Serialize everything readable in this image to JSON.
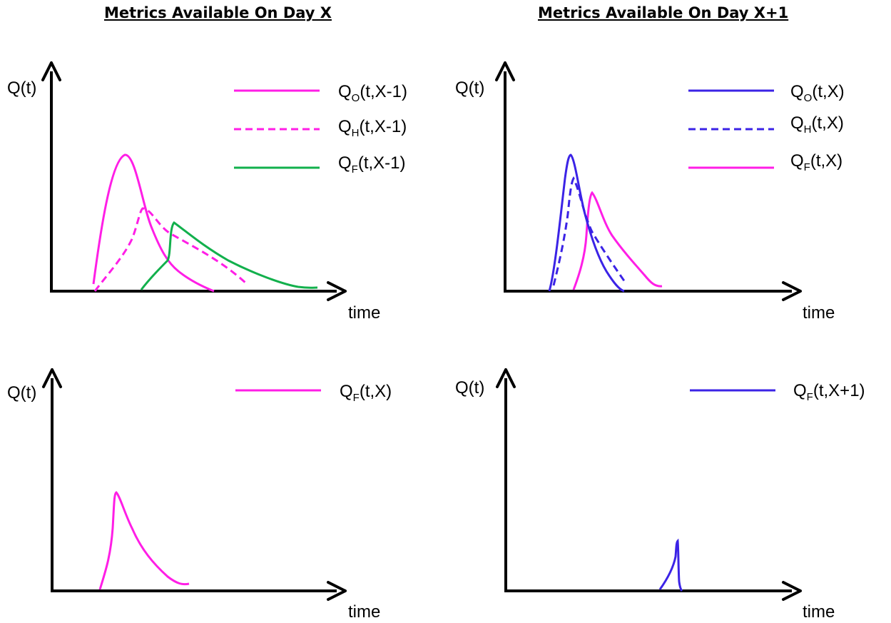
{
  "headings": {
    "left": "Metrics Available On Day X",
    "right": "Metrics Available On Day X+1"
  },
  "colors": {
    "magenta": "#ff1ee6",
    "green": "#12b04c",
    "blue": "#3b23e6",
    "axis": "#000000"
  },
  "panels": [
    {
      "id": "top-left",
      "y_label": "Q(t)",
      "x_label": "time",
      "legend": [
        {
          "main": "Q",
          "sub": "O",
          "args": "(t,X-1)",
          "color": "magenta",
          "dashed": false
        },
        {
          "main": "Q",
          "sub": "H",
          "args": "(t,X-1)",
          "color": "magenta",
          "dashed": true
        },
        {
          "main": "Q",
          "sub": "F",
          "args": "(t,X-1)",
          "color": "green",
          "dashed": false
        }
      ]
    },
    {
      "id": "top-right",
      "y_label": "Q(t)",
      "x_label": "time",
      "legend": [
        {
          "main": "Q",
          "sub": "O",
          "args": "(t,X)",
          "color": "blue",
          "dashed": false
        },
        {
          "main": "Q",
          "sub": "H",
          "args": "(t,X)",
          "color": "blue",
          "dashed": true
        },
        {
          "main": "Q",
          "sub": "F",
          "args": "(t,X)",
          "color": "magenta",
          "dashed": false
        }
      ]
    },
    {
      "id": "bottom-left",
      "y_label": "Q(t)",
      "x_label": "time",
      "legend": [
        {
          "main": "Q",
          "sub": "F",
          "args": "(t,X)",
          "color": "magenta",
          "dashed": false
        }
      ]
    },
    {
      "id": "bottom-right",
      "y_label": "Q(t)",
      "x_label": "time",
      "legend": [
        {
          "main": "Q",
          "sub": "F",
          "args": "(t,X+1)",
          "color": "blue",
          "dashed": false
        }
      ]
    }
  ]
}
